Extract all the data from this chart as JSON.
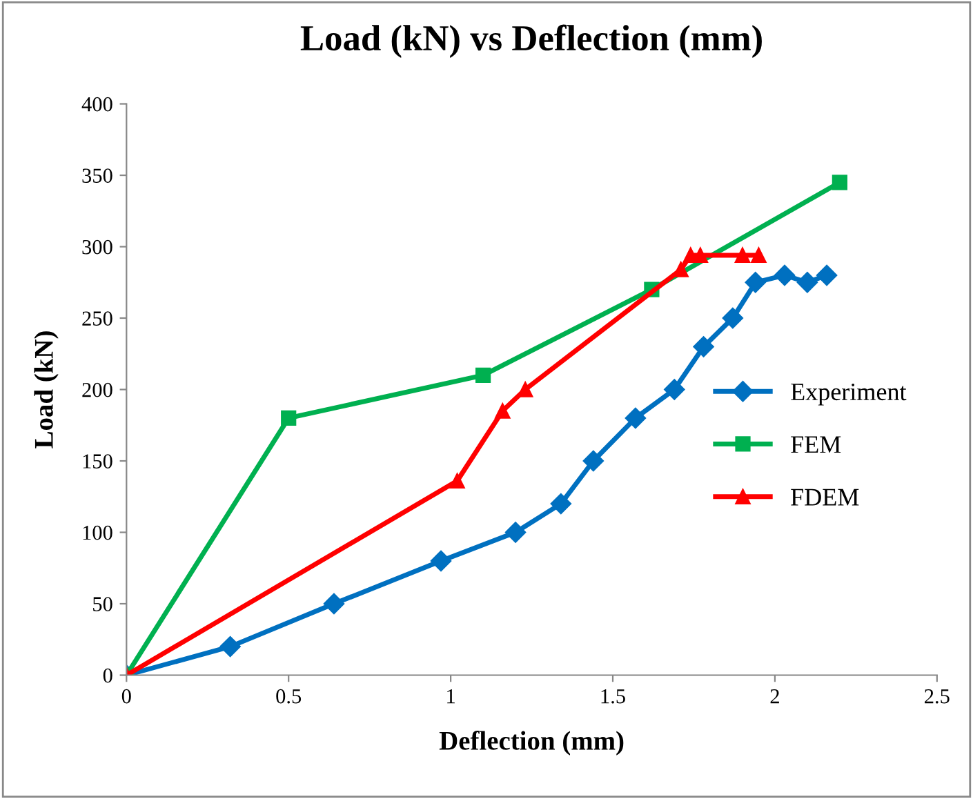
{
  "chart_data": {
    "type": "line",
    "title": "Load (kN) vs Deflection (mm)",
    "xlabel": "Deflection (mm)",
    "ylabel": "Load (kN)",
    "xlim": [
      0,
      2.5
    ],
    "xticks": [
      0,
      0.5,
      1,
      1.5,
      2,
      2.5
    ],
    "ylim": [
      0,
      400
    ],
    "yticks": [
      0,
      50,
      100,
      150,
      200,
      250,
      300,
      350,
      400
    ],
    "grid": false,
    "legend": "right",
    "line_style": "solid",
    "series": [
      {
        "name": "Experiment",
        "color": "#0070c0",
        "marker": "diamond",
        "x": [
          0,
          0.32,
          0.64,
          0.97,
          1.2,
          1.34,
          1.44,
          1.57,
          1.69,
          1.78,
          1.87,
          1.94,
          2.03,
          2.1,
          2.16
        ],
        "values": [
          0,
          20,
          50,
          80,
          100,
          120,
          150,
          180,
          200,
          230,
          250,
          275,
          280,
          275,
          280
        ]
      },
      {
        "name": "FEM",
        "color": "#00b050",
        "marker": "square",
        "x": [
          0,
          0.5,
          1.1,
          1.62,
          2.2
        ],
        "values": [
          0,
          180,
          210,
          270,
          345
        ]
      },
      {
        "name": "FDEM",
        "color": "#ff0000",
        "marker": "triangle",
        "x": [
          0,
          1.02,
          1.16,
          1.23,
          1.71,
          1.74,
          1.77,
          1.9,
          1.95
        ],
        "values": [
          0,
          136,
          185,
          200,
          284,
          294,
          294,
          294,
          294
        ]
      }
    ]
  }
}
